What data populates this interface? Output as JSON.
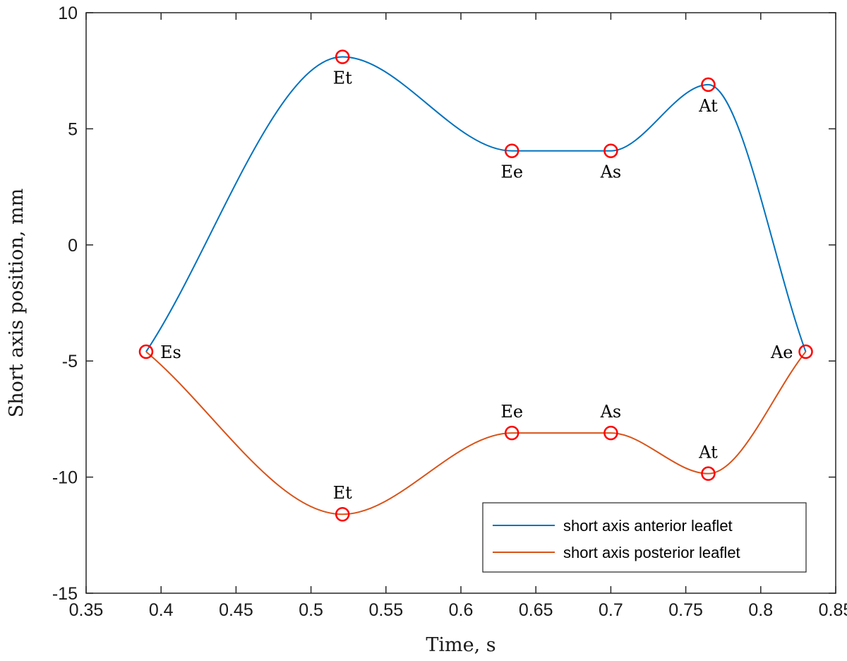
{
  "chart_data": {
    "type": "line",
    "xlabel": "Time, s",
    "ylabel": "Short axis position, mm",
    "xlim": [
      0.35,
      0.85
    ],
    "ylim": [
      -15,
      10
    ],
    "xticks": [
      0.35,
      0.4,
      0.45,
      0.5,
      0.55,
      0.6,
      0.65,
      0.7,
      0.75,
      0.8,
      0.85
    ],
    "xtick_labels": [
      "0.35",
      "0.4",
      "0.45",
      "0.5",
      "0.55",
      "0.6",
      "0.65",
      "0.7",
      "0.75",
      "0.8",
      "0.85"
    ],
    "yticks": [
      10,
      5,
      0,
      -5,
      -10,
      -15
    ],
    "ytick_labels": [
      "10",
      "5",
      "0",
      "-5",
      "-10",
      "-15"
    ],
    "grid": false,
    "legend_position": "bottom-right",
    "series": [
      {
        "name": "short axis anterior leaflet",
        "color": "#0072BD",
        "x": [
          0.39,
          0.521,
          0.634,
          0.7,
          0.765,
          0.83
        ],
        "y": [
          -4.6,
          8.1,
          4.05,
          4.05,
          6.9,
          -4.6
        ]
      },
      {
        "name": "short axis posterior leaflet",
        "color": "#D95319",
        "x": [
          0.39,
          0.521,
          0.634,
          0.7,
          0.765,
          0.83
        ],
        "y": [
          -4.6,
          -11.6,
          -8.1,
          -8.1,
          -9.85,
          -4.6
        ]
      }
    ],
    "key_points": [
      {
        "label": "Es",
        "x": 0.39,
        "y": -4.6,
        "pos": "right"
      },
      {
        "label": "Et",
        "x": 0.521,
        "y": 8.1,
        "pos": "below"
      },
      {
        "label": "Ee",
        "x": 0.634,
        "y": 4.05,
        "pos": "below"
      },
      {
        "label": "As",
        "x": 0.7,
        "y": 4.05,
        "pos": "below"
      },
      {
        "label": "At",
        "x": 0.765,
        "y": 6.9,
        "pos": "below"
      },
      {
        "label": "Ae",
        "x": 0.83,
        "y": -4.6,
        "pos": "left"
      },
      {
        "label": "Et",
        "x": 0.521,
        "y": -11.6,
        "pos": "above"
      },
      {
        "label": "Ee",
        "x": 0.634,
        "y": -8.1,
        "pos": "above"
      },
      {
        "label": "As",
        "x": 0.7,
        "y": -8.1,
        "pos": "above"
      },
      {
        "label": "At",
        "x": 0.765,
        "y": -9.85,
        "pos": "above"
      }
    ],
    "marker_color": "#FF0000"
  }
}
